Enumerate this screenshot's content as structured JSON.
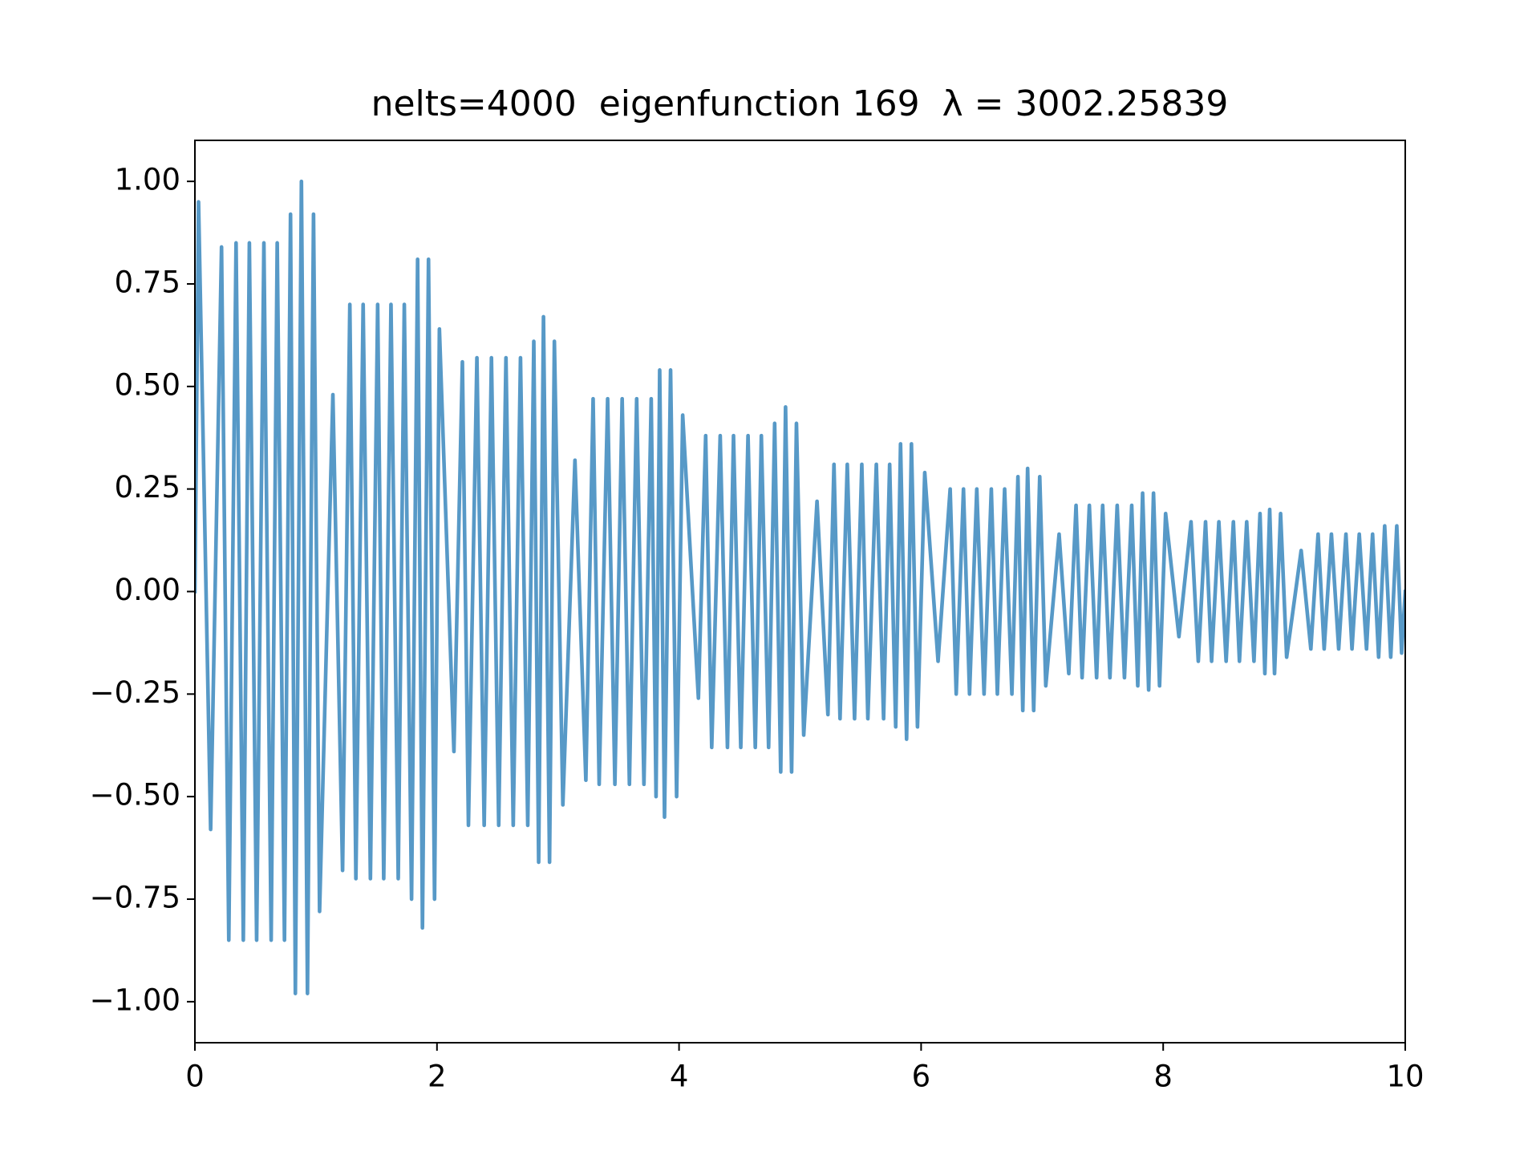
{
  "chart_data": {
    "type": "line",
    "title": "nelts=4000  eigenfunction 169  λ = 3002.25839",
    "xlim": [
      0,
      10
    ],
    "ylim": [
      -1.1,
      1.1
    ],
    "xticks": [
      0,
      2,
      4,
      6,
      8,
      10
    ],
    "yticks": [
      {
        "value": -1.0,
        "label": "−1.00"
      },
      {
        "value": -0.75,
        "label": "−0.75"
      },
      {
        "value": -0.5,
        "label": "−0.50"
      },
      {
        "value": -0.25,
        "label": "−0.25"
      },
      {
        "value": 0,
        "label": "0.00"
      },
      {
        "value": 0.25,
        "label": "0.25"
      },
      {
        "value": 0.5,
        "label": "0.50"
      },
      {
        "value": 0.75,
        "label": "0.75"
      },
      {
        "value": 1.0,
        "label": "1.00"
      }
    ],
    "grid": false,
    "x": [
      0,
      0.03,
      0.13,
      0.22,
      0.28,
      0.34,
      0.4,
      0.45,
      0.51,
      0.57,
      0.63,
      0.68,
      0.74,
      0.79,
      0.83,
      0.88,
      0.93,
      0.98,
      1.03,
      1.14,
      1.22,
      1.28,
      1.33,
      1.39,
      1.45,
      1.51,
      1.56,
      1.62,
      1.68,
      1.73,
      1.79,
      1.84,
      1.88,
      1.93,
      1.98,
      2.02,
      2.14,
      2.21,
      2.26,
      2.33,
      2.39,
      2.45,
      2.51,
      2.57,
      2.63,
      2.69,
      2.75,
      2.8,
      2.84,
      2.88,
      2.93,
      2.97,
      3.04,
      3.14,
      3.23,
      3.29,
      3.34,
      3.41,
      3.47,
      3.53,
      3.59,
      3.65,
      3.71,
      3.77,
      3.81,
      3.84,
      3.88,
      3.93,
      3.98,
      4.03,
      4.16,
      4.22,
      4.27,
      4.34,
      4.4,
      4.45,
      4.51,
      4.57,
      4.63,
      4.68,
      4.74,
      4.79,
      4.84,
      4.88,
      4.93,
      4.97,
      5.03,
      5.14,
      5.23,
      5.28,
      5.33,
      5.39,
      5.45,
      5.51,
      5.56,
      5.63,
      5.69,
      5.74,
      5.79,
      5.83,
      5.88,
      5.92,
      5.97,
      6.03,
      6.14,
      6.24,
      6.29,
      6.35,
      6.4,
      6.46,
      6.52,
      6.58,
      6.63,
      6.69,
      6.75,
      6.8,
      6.84,
      6.88,
      6.93,
      6.98,
      7.03,
      7.14,
      7.22,
      7.28,
      7.33,
      7.39,
      7.45,
      7.5,
      7.56,
      7.62,
      7.68,
      7.74,
      7.79,
      7.83,
      7.88,
      7.92,
      7.97,
      8.02,
      8.13,
      8.23,
      8.29,
      8.35,
      8.4,
      8.46,
      8.52,
      8.58,
      8.63,
      8.69,
      8.75,
      8.8,
      8.84,
      8.88,
      8.92,
      8.97,
      9.02,
      9.14,
      9.22,
      9.28,
      9.33,
      9.39,
      9.45,
      9.51,
      9.56,
      9.62,
      9.68,
      9.73,
      9.78,
      9.83,
      9.88,
      9.93,
      9.97,
      10
    ],
    "series": [
      {
        "color": "#5799c7",
        "values": [
          0,
          0.95,
          -0.58,
          0.84,
          -0.85,
          0.85,
          -0.85,
          0.85,
          -0.85,
          0.85,
          -0.85,
          0.85,
          -0.85,
          0.92,
          -0.98,
          1.0,
          -0.98,
          0.92,
          -0.78,
          0.48,
          -0.68,
          0.7,
          -0.7,
          0.7,
          -0.7,
          0.7,
          -0.7,
          0.7,
          -0.7,
          0.7,
          -0.75,
          0.81,
          -0.82,
          0.81,
          -0.75,
          0.64,
          -0.39,
          0.56,
          -0.57,
          0.57,
          -0.57,
          0.57,
          -0.57,
          0.57,
          -0.57,
          0.57,
          -0.57,
          0.61,
          -0.66,
          0.67,
          -0.66,
          0.61,
          -0.52,
          0.32,
          -0.46,
          0.47,
          -0.47,
          0.47,
          -0.47,
          0.47,
          -0.47,
          0.47,
          -0.47,
          0.47,
          -0.5,
          0.54,
          -0.55,
          0.54,
          -0.5,
          0.43,
          -0.26,
          0.38,
          -0.38,
          0.38,
          -0.38,
          0.38,
          -0.38,
          0.38,
          -0.38,
          0.38,
          -0.38,
          0.41,
          -0.44,
          0.45,
          -0.44,
          0.41,
          -0.35,
          0.22,
          -0.3,
          0.31,
          -0.31,
          0.31,
          -0.31,
          0.31,
          -0.31,
          0.31,
          -0.31,
          0.31,
          -0.33,
          0.36,
          -0.36,
          0.36,
          -0.33,
          0.29,
          -0.17,
          0.25,
          -0.25,
          0.25,
          -0.25,
          0.25,
          -0.25,
          0.25,
          -0.25,
          0.25,
          -0.25,
          0.28,
          -0.29,
          0.3,
          -0.29,
          0.28,
          -0.23,
          0.14,
          -0.2,
          0.21,
          -0.21,
          0.21,
          -0.21,
          0.21,
          -0.21,
          0.21,
          -0.21,
          0.21,
          -0.23,
          0.24,
          -0.24,
          0.24,
          -0.23,
          0.19,
          -0.11,
          0.17,
          -0.17,
          0.17,
          -0.17,
          0.17,
          -0.17,
          0.17,
          -0.17,
          0.17,
          -0.17,
          0.19,
          -0.2,
          0.2,
          -0.2,
          0.19,
          -0.16,
          0.1,
          -0.14,
          0.14,
          -0.14,
          0.14,
          -0.14,
          0.14,
          -0.14,
          0.14,
          -0.14,
          0.14,
          -0.16,
          0.16,
          -0.16,
          0.16,
          -0.15,
          0
        ]
      }
    ]
  }
}
